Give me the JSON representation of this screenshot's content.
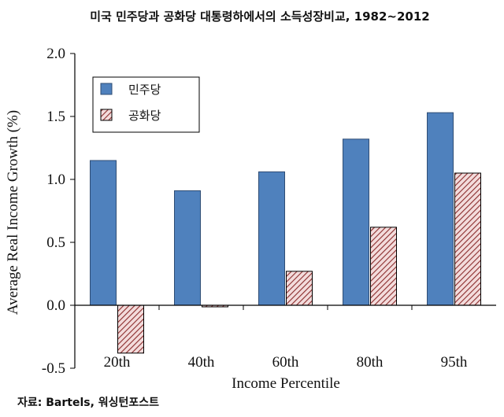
{
  "chart_data": {
    "type": "bar",
    "title": "미국 민주당과 공화당 대통령하에서의 소득성장비교, 1982~2012",
    "xlabel": "Income Percentile",
    "ylabel": "Average Real Income Growth (%)",
    "categories": [
      "20th",
      "40th",
      "60th",
      "80th",
      "95th"
    ],
    "series": [
      {
        "name": "민주당",
        "values": [
          1.15,
          0.91,
          1.06,
          1.32,
          1.53
        ],
        "color": "#4f81bd",
        "pattern": "solid"
      },
      {
        "name": "공화당",
        "values": [
          -0.38,
          -0.01,
          0.27,
          0.62,
          1.05
        ],
        "color": "#c0504d",
        "pattern": "diagonal-hatch"
      }
    ],
    "ylim": [
      -0.5,
      2.0
    ],
    "yticks": [
      "-0.5",
      "0.0",
      "0.5",
      "1.0",
      "1.5",
      "2.0"
    ],
    "grid": false,
    "legend": "top-left"
  },
  "source": "자료: Bartels, 워싱턴포스트"
}
